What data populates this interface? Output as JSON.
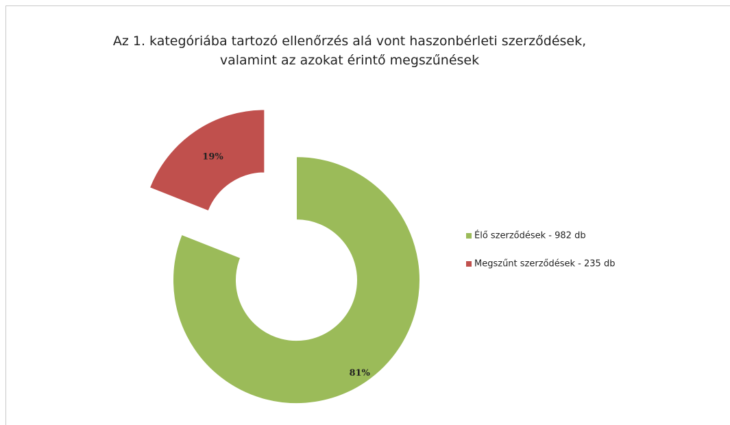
{
  "chart_data": {
    "type": "donut",
    "title": "Az 1. kategóriába tartozó ellenőrzés alá vont haszonbérleti szerződések, valamint az azokat érintő megszűnések",
    "categories": [
      "Élő szerződések - 982 db",
      "Megszűnt szerződések  - 235 db"
    ],
    "values": [
      81,
      19
    ],
    "value_labels": [
      "81%",
      "19%"
    ],
    "colors": [
      "#9bbb59",
      "#c0504d"
    ],
    "legend": "right"
  }
}
